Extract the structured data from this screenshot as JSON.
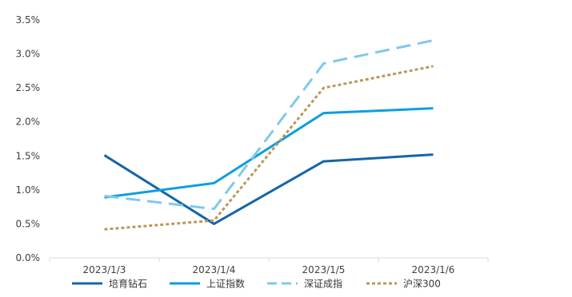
{
  "chart_data": {
    "type": "line",
    "categories": [
      "2023/1/3",
      "2023/1/4",
      "2023/1/5",
      "2023/1/6"
    ],
    "y_ticks": [
      "0.0%",
      "0.5%",
      "1.0%",
      "1.5%",
      "2.0%",
      "2.5%",
      "3.0%",
      "3.5%"
    ],
    "ylim": [
      0,
      3.5
    ],
    "grid": false,
    "legend_position": "bottom",
    "series": [
      {
        "name": "培育钻石",
        "values": [
          1.51,
          0.5,
          1.42,
          1.52
        ],
        "color": "#1565a8",
        "style": "solid"
      },
      {
        "name": "上证指数",
        "values": [
          0.89,
          1.1,
          2.13,
          2.2
        ],
        "color": "#0d9ee0",
        "style": "solid"
      },
      {
        "name": "深证成指",
        "values": [
          0.91,
          0.72,
          2.86,
          3.2
        ],
        "color": "#7ec8ef",
        "style": "long-dash"
      },
      {
        "name": "沪深300",
        "values": [
          0.42,
          0.55,
          2.5,
          2.82
        ],
        "color": "#b9995a",
        "style": "dotted"
      }
    ]
  }
}
